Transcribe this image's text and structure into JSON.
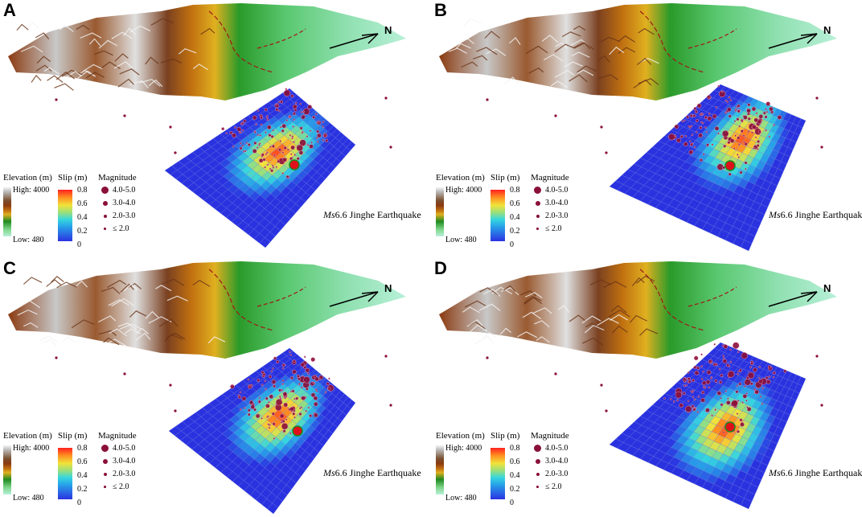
{
  "panels": [
    {
      "id": "A",
      "label": "A"
    },
    {
      "id": "B",
      "label": "B"
    },
    {
      "id": "C",
      "label": "C"
    },
    {
      "id": "D",
      "label": "D"
    }
  ],
  "north_label": "N",
  "legend": {
    "elevation_title": "Elevation (m)",
    "elevation_high": "High: 4000",
    "elevation_low": "Low: 480",
    "slip_title": "Slip (m)",
    "slip_ticks": [
      "0.8",
      "0.6",
      "0.4",
      "0.2",
      "0"
    ],
    "magnitude_title": "Magnitude",
    "magnitude_items": [
      "4.0-5.0",
      "3.0-4.0",
      "2.0-3.0",
      "≤ 2.0"
    ]
  },
  "quake_prefix": "Ms",
  "quake_suffix": "6.6 Jinghe Earthquake",
  "colors": {
    "dot": "#8a0f3a",
    "hypocenter": "#e0101a",
    "hypocenter_ring": "#1a8a1a",
    "grid_base": "#3a40c8"
  }
}
